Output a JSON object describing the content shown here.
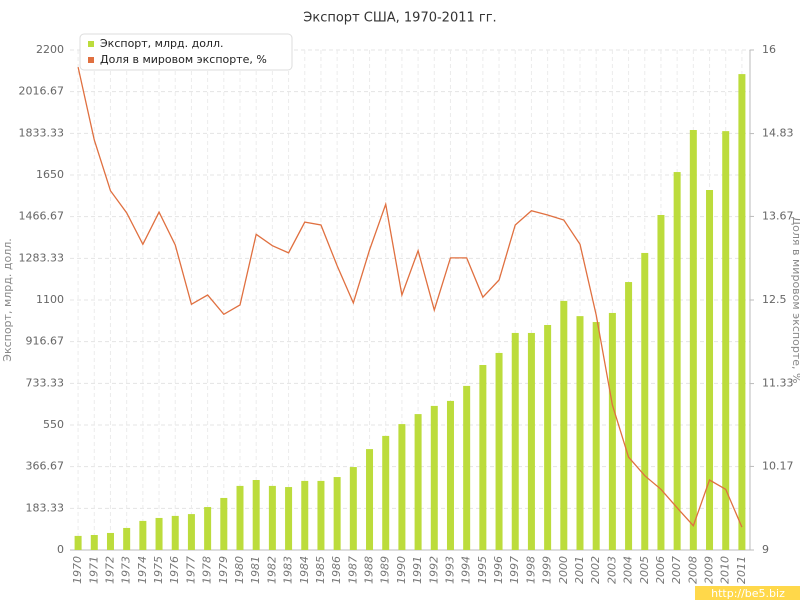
{
  "chart_data": {
    "type": "bar_line",
    "title": "Экспорт США, 1970-2011 гг.",
    "y_label": "Экспорт, млрд. долл.",
    "y2_label": "Доля в мировом экспорте, %",
    "watermark": "http://be5.biz",
    "legend": "top-left",
    "grid": true,
    "categories": [
      "1970",
      "1971",
      "1972",
      "1973",
      "1974",
      "1975",
      "1976",
      "1977",
      "1978",
      "1979",
      "1980",
      "1981",
      "1982",
      "1983",
      "1984",
      "1985",
      "1986",
      "1987",
      "1988",
      "1989",
      "1990",
      "1991",
      "1992",
      "1993",
      "1994",
      "1995",
      "1996",
      "1997",
      "1998",
      "1999",
      "2000",
      "2001",
      "2002",
      "2003",
      "2004",
      "2005",
      "2006",
      "2007",
      "2008",
      "2009",
      "2010",
      "2011"
    ],
    "series": [
      {
        "name": "Экспорт, млрд. долл.",
        "color": "#bcdc3c",
        "type": "bar",
        "values": [
          62,
          66,
          75,
          97,
          128,
          141,
          150,
          158,
          189,
          229,
          282,
          308,
          282,
          277,
          304,
          304,
          321,
          365,
          444,
          502,
          554,
          598,
          634,
          656,
          722,
          814,
          867,
          955,
          955,
          990,
          1096,
          1029,
          1003,
          1043,
          1179,
          1307,
          1474,
          1663,
          1848,
          1584,
          1843,
          2094
        ]
      },
      {
        "name": "Доля в мировом экспорте, %",
        "color": "#e07040",
        "type": "line",
        "axis": "y2",
        "values": [
          15.76,
          14.74,
          14.03,
          13.72,
          13.28,
          13.73,
          13.27,
          12.44,
          12.57,
          12.3,
          12.43,
          13.42,
          13.26,
          13.16,
          13.59,
          13.55,
          12.98,
          12.46,
          13.2,
          13.84,
          12.57,
          13.19,
          12.36,
          13.09,
          13.09,
          12.54,
          12.78,
          13.55,
          13.75,
          13.69,
          13.62,
          13.28,
          12.29,
          11.03,
          10.3,
          10.04,
          9.85,
          9.59,
          9.34,
          9.98,
          9.85,
          9.32
        ]
      }
    ],
    "ylim": [
      0,
      2200
    ],
    "yticks": [
      0,
      183.33,
      366.67,
      550,
      733.33,
      916.67,
      1100,
      1283.33,
      1466.67,
      1650,
      1833.33,
      2016.67,
      2200
    ],
    "y2lim": [
      9,
      16
    ],
    "y2ticks": [
      9,
      10.17,
      11.33,
      12.5,
      13.67,
      14.83,
      16
    ]
  }
}
